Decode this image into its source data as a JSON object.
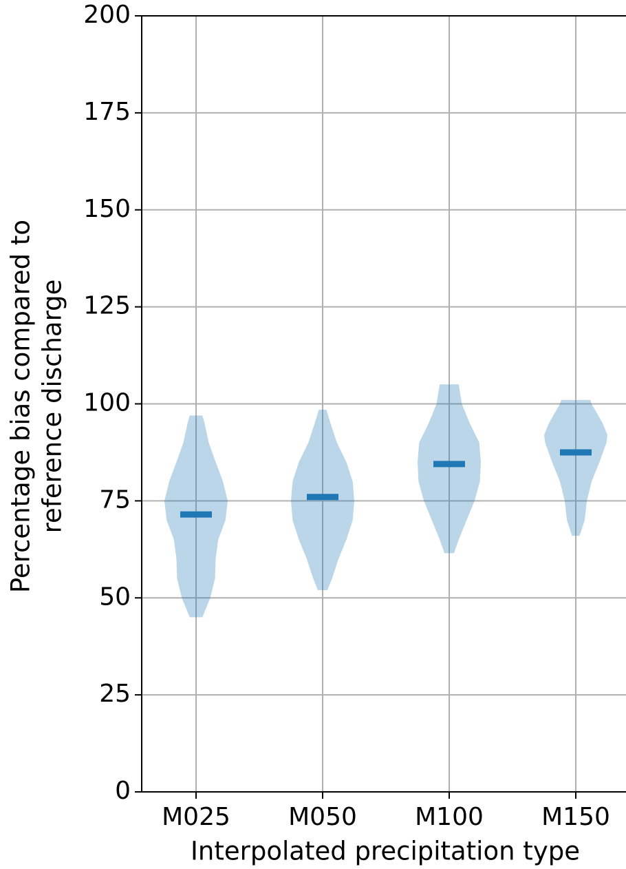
{
  "chart_data": {
    "type": "violin",
    "x_label": "Interpolated precipitation type",
    "y_label": [
      "Percentage bias compared to",
      "reference discharge"
    ],
    "categories": [
      "M025",
      "M050",
      "M100",
      "M150"
    ],
    "color": "#1f77b4",
    "ylim": [
      0,
      200
    ],
    "yticks": [
      0,
      25,
      50,
      75,
      100,
      125,
      150,
      175,
      200
    ],
    "grid": true,
    "series": [
      {
        "name": "M025",
        "median": 71.5,
        "density": {
          "y": [
            45,
            50,
            55,
            60,
            65,
            70,
            75,
            80,
            85,
            90,
            95,
            97
          ],
          "width": [
            0.2,
            0.45,
            0.6,
            0.62,
            0.7,
            0.93,
            1.0,
            0.85,
            0.62,
            0.4,
            0.27,
            0.2
          ]
        }
      },
      {
        "name": "M050",
        "median": 76,
        "density": {
          "y": [
            52,
            55,
            60,
            65,
            70,
            75,
            80,
            85,
            90,
            95,
            98.5
          ],
          "width": [
            0.15,
            0.3,
            0.5,
            0.75,
            0.95,
            1.0,
            0.95,
            0.75,
            0.45,
            0.25,
            0.12
          ]
        }
      },
      {
        "name": "M100",
        "median": 84.5,
        "density": {
          "y": [
            61.5,
            65,
            70,
            75,
            80,
            85,
            90,
            95,
            100,
            105
          ],
          "width": [
            0.15,
            0.3,
            0.55,
            0.8,
            0.97,
            1.0,
            0.95,
            0.65,
            0.4,
            0.3
          ]
        }
      },
      {
        "name": "M150",
        "median": 87.5,
        "density": {
          "y": [
            66,
            70,
            75,
            80,
            85,
            90,
            92,
            95,
            100,
            101
          ],
          "width": [
            0.12,
            0.28,
            0.35,
            0.5,
            0.75,
            0.97,
            1.0,
            0.85,
            0.5,
            0.46
          ]
        }
      }
    ]
  }
}
